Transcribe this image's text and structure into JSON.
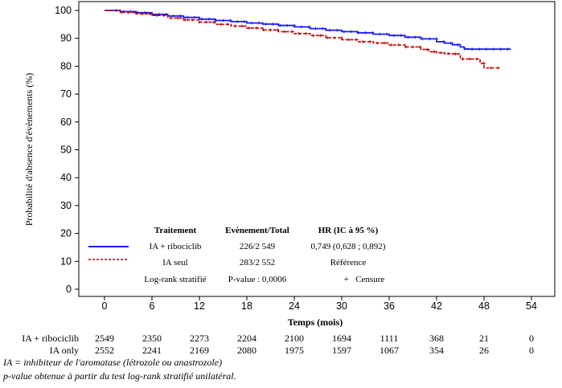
{
  "chart_data": {
    "type": "line",
    "subtype": "kaplan-meier",
    "xlabel": "Temps (mois)",
    "ylabel": "Probabilité d'absence d'évènements (%)",
    "xlim": [
      -3,
      56
    ],
    "ylim": [
      0,
      100
    ],
    "xticks": [
      0,
      6,
      12,
      18,
      24,
      30,
      36,
      42,
      48,
      54
    ],
    "yticks": [
      0,
      10,
      20,
      30,
      40,
      50,
      60,
      70,
      80,
      90,
      100
    ],
    "grid": false,
    "legend_position": "bottom-center",
    "series": [
      {
        "name": "IA + ribociclib",
        "color": "#1a1aff",
        "style": "solid",
        "points": [
          [
            0,
            100
          ],
          [
            2,
            99.6
          ],
          [
            4,
            99.2
          ],
          [
            6,
            98.6
          ],
          [
            8,
            98
          ],
          [
            10,
            97.5
          ],
          [
            12,
            96.9
          ],
          [
            14,
            96.4
          ],
          [
            16,
            96
          ],
          [
            18,
            95.5
          ],
          [
            20,
            95.1
          ],
          [
            22,
            94.6
          ],
          [
            24,
            94.1
          ],
          [
            26,
            93.5
          ],
          [
            28,
            92.9
          ],
          [
            30,
            92.4
          ],
          [
            32,
            92
          ],
          [
            34,
            91.5
          ],
          [
            36,
            91
          ],
          [
            38,
            90.4
          ],
          [
            40,
            89.8
          ],
          [
            42,
            88.8
          ],
          [
            43,
            88.3
          ],
          [
            44,
            87.7
          ],
          [
            45,
            86.9
          ],
          [
            45.5,
            86.2
          ],
          [
            46,
            86.1
          ],
          [
            48,
            86.1
          ],
          [
            50,
            86.1
          ],
          [
            51.4,
            86.1
          ]
        ]
      },
      {
        "name": "IA seul",
        "color": "#c00000",
        "style": "dashed",
        "points": [
          [
            0,
            100
          ],
          [
            2,
            99.3
          ],
          [
            4,
            98.8
          ],
          [
            6,
            98.2
          ],
          [
            8,
            97.3
          ],
          [
            10,
            96.6
          ],
          [
            12,
            95.8
          ],
          [
            14,
            95
          ],
          [
            16,
            94.4
          ],
          [
            18,
            93.7
          ],
          [
            20,
            93
          ],
          [
            22,
            92.4
          ],
          [
            24,
            91.7
          ],
          [
            26,
            91
          ],
          [
            28,
            90.2
          ],
          [
            30,
            89.5
          ],
          [
            32,
            88.8
          ],
          [
            34,
            88.3
          ],
          [
            36,
            87.6
          ],
          [
            38,
            86.9
          ],
          [
            40,
            86
          ],
          [
            41,
            85.2
          ],
          [
            42,
            84.8
          ],
          [
            43,
            84.5
          ],
          [
            44,
            84.4
          ],
          [
            45,
            82.6
          ],
          [
            46,
            82.6
          ],
          [
            47,
            82.6
          ],
          [
            47.5,
            81
          ],
          [
            48,
            79.4
          ],
          [
            49,
            79.4
          ],
          [
            50,
            79.4
          ]
        ]
      }
    ],
    "censure_symbol": "+",
    "legend_table": {
      "headers": [
        "Traitement",
        "Evènement/Total",
        "HR (IC à 95 %)"
      ],
      "rows": [
        {
          "label": "IA + ribociclib",
          "events": "226/2 549",
          "hr": "0,749 (0,628 ; 0,892)"
        },
        {
          "label": "IA seul",
          "events": "283/2 552",
          "hr": "Référence"
        },
        {
          "label": "Log-rank stratifié",
          "events": "P-value : 0,0006",
          "hr": "+   Censure"
        }
      ]
    },
    "at_risk": {
      "times": [
        0,
        6,
        12,
        18,
        24,
        30,
        36,
        42,
        48,
        54
      ],
      "rows": [
        {
          "label": "IA + ribociclib",
          "values": [
            2549,
            2350,
            2273,
            2204,
            2100,
            1694,
            1111,
            368,
            21,
            0
          ]
        },
        {
          "label": "IA only",
          "values": [
            2552,
            2241,
            2169,
            2080,
            1975,
            1597,
            1067,
            354,
            26,
            0
          ]
        }
      ]
    }
  },
  "footnotes": [
    "IA = inhibiteur de l'aromatase (létrozole ou anastrozole)",
    "p-value obtenue à partir du test log-rank stratifié unilatéral."
  ]
}
